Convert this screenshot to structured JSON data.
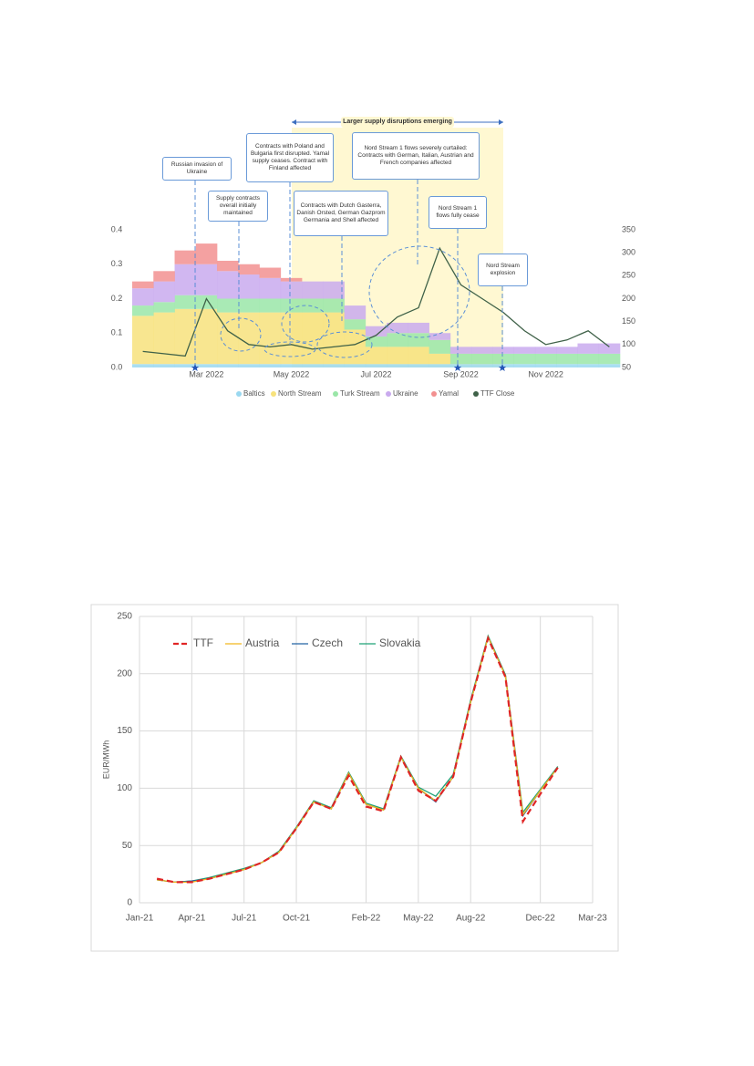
{
  "chart_data": [
    {
      "type": "area",
      "categories": [
        null,
        null,
        null,
        "Mar 2022",
        null,
        null,
        null,
        "May 2022",
        null,
        null,
        null,
        "Jul 2022",
        null,
        null,
        null,
        "Sep 2022",
        null,
        null,
        null,
        "Nov 2022",
        null,
        null,
        null
      ],
      "series": [
        {
          "name": "Baltics",
          "color": "#9ad8f0",
          "values": [
            0.01,
            0.01,
            0.01,
            0.01,
            0.01,
            0.01,
            0.01,
            0.01,
            0.01,
            0.01,
            0.01,
            0.01,
            0.01,
            0.01,
            0.01,
            0.01,
            0.01,
            0.01,
            0.01,
            0.01,
            0.01,
            0.01,
            0.01
          ]
        },
        {
          "name": "North Stream",
          "color": "#f7e27c",
          "values": [
            0.14,
            0.15,
            0.16,
            0.16,
            0.15,
            0.15,
            0.15,
            0.15,
            0.15,
            0.15,
            0.1,
            0.05,
            0.05,
            0.05,
            0.03,
            0,
            0,
            0,
            0,
            0,
            0,
            0,
            0
          ]
        },
        {
          "name": "Turk Stream",
          "color": "#9ae6a8",
          "values": [
            0.03,
            0.03,
            0.04,
            0.04,
            0.04,
            0.04,
            0.04,
            0.04,
            0.04,
            0.04,
            0.03,
            0.03,
            0.04,
            0.04,
            0.04,
            0.03,
            0.03,
            0.03,
            0.03,
            0.03,
            0.03,
            0.03,
            0.03
          ]
        },
        {
          "name": "Ukraine",
          "color": "#c9aaee",
          "values": [
            0.05,
            0.06,
            0.09,
            0.09,
            0.08,
            0.07,
            0.06,
            0.05,
            0.05,
            0.05,
            0.04,
            0.03,
            0.03,
            0.03,
            0.02,
            0.02,
            0.02,
            0.02,
            0.02,
            0.02,
            0.02,
            0.03,
            0.03
          ]
        },
        {
          "name": "Yamal",
          "color": "#f29090",
          "values": [
            0.02,
            0.03,
            0.04,
            0.06,
            0.03,
            0.03,
            0.03,
            0.01,
            0,
            0,
            0,
            0,
            0,
            0,
            0,
            0,
            0,
            0,
            0,
            0,
            0,
            0,
            0
          ]
        },
        {
          "name": "TTF Close",
          "color": "#3f6148",
          "axis": "y2",
          "values": [
            85,
            80,
            75,
            200,
            130,
            100,
            95,
            100,
            90,
            95,
            100,
            120,
            160,
            180,
            310,
            230,
            200,
            170,
            130,
            100,
            110,
            130,
            95
          ]
        }
      ],
      "ylim": [
        0,
        0.4
      ],
      "yticks": [
        {
          "value": 0,
          "label": "0.0"
        },
        0.1,
        0.2,
        0.3,
        0.4
      ],
      "y2lim": [
        50,
        350
      ],
      "y2ticks": [
        50,
        100,
        150,
        200,
        250,
        300,
        350
      ],
      "grid": false,
      "legend": "bottom",
      "annotations": [
        "Larger supply disruptions emerging",
        "Russian invasion of Ukraine",
        "Supply contracts overall initially maintained",
        "Contracts with Poland and Bulgaria first disrupted. Yamal supply ceases. Contract with Finland affected",
        "Contracts with Dutch Gasterra, Danish Orsted, German Gazprom Germania and Shell affected",
        "Nord Stream 1 flows severely curtailed: Contracts with German, Italian, Austrian and French companies affected",
        "Nord Stream 1 flows fully cease",
        "Nord Stream explosion"
      ]
    },
    {
      "type": "line",
      "y_label": "EUR/MWh",
      "x": [
        "2021-02",
        "2021-03",
        "2021-04",
        "2021-05",
        "2021-06",
        "2021-07",
        "2021-08",
        "2021-09",
        "2021-10",
        "2021-11",
        "2021-12",
        "2022-01",
        "2022-02",
        "2022-03",
        "2022-04",
        "2022-05",
        "2022-06",
        "2022-07",
        "2022-08",
        "2022-09",
        "2022-10",
        "2022-11",
        "2022-12",
        "2023-01"
      ],
      "series": [
        {
          "name": "TTF",
          "color": "#e02525",
          "dashed": true,
          "values": [
            21,
            18,
            18,
            21,
            25,
            29,
            35,
            44,
            65,
            88,
            82,
            111,
            84,
            80,
            127,
            98,
            89,
            110,
            175,
            231,
            197,
            71,
            95,
            118
          ]
        },
        {
          "name": "Austria",
          "color": "#f2b81e",
          "values": [
            20,
            18,
            18,
            21,
            25,
            29,
            35,
            44,
            65,
            88,
            82,
            113,
            86,
            81,
            127,
            100,
            89,
            110,
            175,
            232,
            198,
            77,
            98,
            118
          ]
        },
        {
          "name": "Czech",
          "color": "#2363a3",
          "values": [
            20,
            18,
            19,
            21,
            25,
            29,
            35,
            44,
            65,
            88,
            82,
            113,
            86,
            81,
            127,
            100,
            88,
            110,
            175,
            232,
            198,
            76,
            98,
            118
          ]
        },
        {
          "name": "Slovakia",
          "color": "#1fa276",
          "values": [
            20,
            18,
            19,
            22,
            26,
            30,
            35,
            45,
            66,
            89,
            83,
            114,
            87,
            82,
            128,
            101,
            93,
            112,
            177,
            233,
            199,
            79,
            99,
            119
          ]
        }
      ],
      "xlim": [
        "2021-01",
        "2023-03"
      ],
      "xticks": [
        {
          "value": "2021-01",
          "label": "Jan-21"
        },
        {
          "value": "2021-04",
          "label": "Apr-21"
        },
        {
          "value": "2021-07",
          "label": "Jul-21"
        },
        {
          "value": "2021-10",
          "label": "Oct-21"
        },
        {
          "value": "2022-02",
          "label": "Feb-22"
        },
        {
          "value": "2022-05",
          "label": "May-22"
        },
        {
          "value": "2022-08",
          "label": "Aug-22"
        },
        {
          "value": "2022-12",
          "label": "Dec-22"
        },
        {
          "value": "2023-03",
          "label": "Mar-23"
        }
      ],
      "ylim": [
        0,
        250
      ],
      "yticks": [
        0,
        50,
        100,
        150,
        200,
        250
      ],
      "grid": true,
      "legend": "top-left"
    }
  ]
}
